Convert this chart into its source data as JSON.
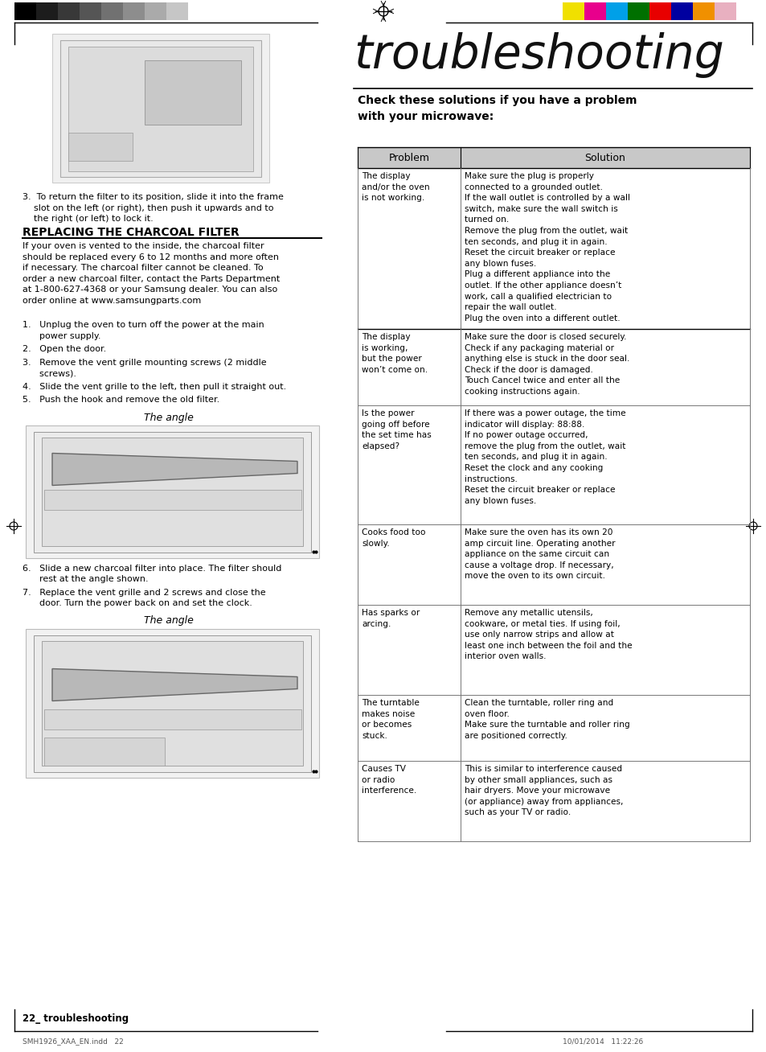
{
  "title": "troubleshooting",
  "subtitle": "Check these solutions if you have a problem\nwith your microwave:",
  "page_num": "22_ troubleshooting",
  "footer_left": "SMH1926_XAA_EN.indd   22",
  "footer_right": "10/01/2014   11:22:26",
  "section_title": "REPLACING THE CHARCOAL FILTER",
  "left_section_body": "If your oven is vented to the inside, the charcoal filter\nshould be replaced every 6 to 12 months and more often\nif necessary. The charcoal filter cannot be cleaned. To\norder a new charcoal filter, contact the Parts Department\nat 1-800-627-4368 or your Samsung dealer. You can also\norder online at www.samsungparts.com",
  "step3_text": "3.  To return the filter to its position, slide it into the frame\n    slot on the left (or right), then push it upwards and to\n    the right (or left) to lock it.",
  "left_steps": [
    "1.   Unplug the oven to turn off the power at the main\n      power supply.",
    "2.   Open the door.",
    "3.   Remove the vent grille mounting screws (2 middle\n      screws).",
    "4.   Slide the vent grille to the left, then pull it straight out.",
    "5.   Push the hook and remove the old filter."
  ],
  "angle_label1": "The angle",
  "left_steps2_6": "6.   Slide a new charcoal filter into place. The filter should\n      rest at the angle shown.",
  "left_steps2_7": "7.   Replace the vent grille and 2 screws and close the\n      door. Turn the power back on and set the clock.",
  "angle_label2": "The angle",
  "table_header": [
    "Problem",
    "Solution"
  ],
  "table_rows": [
    {
      "problem": "The display\nand/or the oven\nis not working.",
      "solution": "Make sure the plug is properly\nconnected to a grounded outlet.\nIf the wall outlet is controlled by a wall\nswitch, make sure the wall switch is\nturned on.\nRemove the plug from the outlet, wait\nten seconds, and plug it in again.\nReset the circuit breaker or replace\nany blown fuses.\nPlug a different appliance into the\noutlet. If the other appliance doesn’t\nwork, call a qualified electrician to\nrepair the wall outlet.\nPlug the oven into a different outlet."
    },
    {
      "problem": "The display\nis working,\nbut the power\nwon’t come on.",
      "solution": "Make sure the door is closed securely.\nCheck if any packaging material or\nanything else is stuck in the door seal.\nCheck if the door is damaged.\nTouch Cancel twice and enter all the\ncooking instructions again."
    },
    {
      "problem": "Is the power\ngoing off before\nthe set time has\nelapsed?",
      "solution": "If there was a power outage, the time\nindicator will display: 88:88.\nIf no power outage occurred,\nremove the plug from the outlet, wait\nten seconds, and plug it in again.\nReset the clock and any cooking\ninstructions.\nReset the circuit breaker or replace\nany blown fuses."
    },
    {
      "problem": "Cooks food too\nslowly.",
      "solution": "Make sure the oven has its own 20\namp circuit line. Operating another\nappliance on the same circuit can\ncause a voltage drop. If necessary,\nmove the oven to its own circuit."
    },
    {
      "problem": "Has sparks or\narcing.",
      "solution": "Remove any metallic utensils,\ncookware, or metal ties. If using foil,\nuse only narrow strips and allow at\nleast one inch between the foil and the\ninterior oven walls."
    },
    {
      "problem": "The turntable\nmakes noise\nor becomes\nstuck.",
      "solution": "Clean the turntable, roller ring and\noven floor.\nMake sure the turntable and roller ring\nare positioned correctly."
    },
    {
      "problem": "Causes TV\nor radio\ninterference.",
      "solution": "This is similar to interference caused\nby other small appliances, such as\nhair dryers. Move your microwave\n(or appliance) away from appliances,\nsuch as your TV or radio."
    }
  ],
  "bg_color": "#ffffff",
  "table_header_bg": "#c8c8c8",
  "table_border_color": "#000000",
  "text_color": "#000000"
}
